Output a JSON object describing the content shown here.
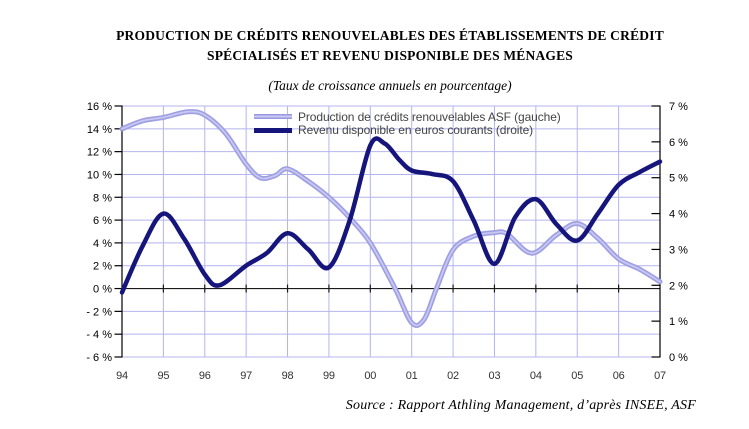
{
  "chart_data": {
    "type": "line",
    "title_line1": "PRODUCTION DE CRÉDITS RENOUVELABLES DES ÉTABLISSEMENTS DE CRÉDIT",
    "title_line2": "SPÉCIALISÉS ET REVENU DISPONIBLE DES MÉNAGES",
    "subtitle": "(Taux de croissance annuels en pourcentage)",
    "source": "Source : Rapport Athling Management, d’après INSEE, ASF",
    "x_tick_labels": [
      "94",
      "95",
      "96",
      "97",
      "98",
      "99",
      "00",
      "01",
      "02",
      "03",
      "04",
      "05",
      "06",
      "07"
    ],
    "left_axis": {
      "min": -6,
      "max": 16,
      "step": 2,
      "labels": [
        "16 %",
        "14 %",
        "12 %",
        "10 %",
        "8 %",
        "6 %",
        "4 %",
        "2 %",
        "0 %",
        "- 2 %",
        "- 4 %",
        "- 6 %"
      ],
      "values": [
        16,
        14,
        12,
        10,
        8,
        6,
        4,
        2,
        0,
        -2,
        -4,
        -6
      ]
    },
    "right_axis": {
      "min": 0,
      "max": 7,
      "step": 1,
      "labels": [
        "7 %",
        "6 %",
        "5 %",
        "4 %",
        "3 %",
        "2 %",
        "1 %",
        "0 %"
      ],
      "values": [
        7,
        6,
        5,
        4,
        3,
        2,
        1,
        0
      ]
    },
    "grid": {
      "color": "#b4b4ee",
      "zero_line_color": "#1a1a1a",
      "axis_color": "#000000"
    },
    "legend_position": "top-center-inside",
    "series": [
      {
        "name": "Production de crédits renouvelables ASF (gauche)",
        "axis": "left",
        "color": "#9e9ee2",
        "highlight": "#c7c7f2",
        "points": [
          [
            1994,
            14.0
          ],
          [
            1994.5,
            14.7
          ],
          [
            1995,
            15.0
          ],
          [
            1995.6,
            15.5
          ],
          [
            1996,
            15.2
          ],
          [
            1996.5,
            13.6
          ],
          [
            1997,
            10.9
          ],
          [
            1997.35,
            9.7
          ],
          [
            1997.7,
            9.9
          ],
          [
            1998,
            10.5
          ],
          [
            1998.5,
            9.4
          ],
          [
            1999,
            8.0
          ],
          [
            1999.5,
            6.2
          ],
          [
            2000,
            4.0
          ],
          [
            2000.6,
            0.0
          ],
          [
            2001,
            -3.0
          ],
          [
            2001.3,
            -2.7
          ],
          [
            2001.6,
            0.0
          ],
          [
            2002,
            3.4
          ],
          [
            2002.5,
            4.6
          ],
          [
            2003,
            4.9
          ],
          [
            2003.3,
            4.8
          ],
          [
            2003.9,
            3.1
          ],
          [
            2004.5,
            4.7
          ],
          [
            2005,
            5.7
          ],
          [
            2005.5,
            4.4
          ],
          [
            2006,
            2.6
          ],
          [
            2006.5,
            1.7
          ],
          [
            2007,
            0.6
          ]
        ]
      },
      {
        "name": "Revenu disponible en euros courants (droite)",
        "axis": "right",
        "color": "#15157c",
        "points": [
          [
            1994,
            1.8
          ],
          [
            1994.5,
            3.1
          ],
          [
            1995,
            4.0
          ],
          [
            1995.5,
            3.3
          ],
          [
            1996,
            2.3
          ],
          [
            1996.35,
            2.0
          ],
          [
            1997,
            2.55
          ],
          [
            1997.5,
            2.9
          ],
          [
            1998,
            3.45
          ],
          [
            1998.5,
            3.0
          ],
          [
            1999,
            2.5
          ],
          [
            1999.5,
            3.8
          ],
          [
            2000,
            5.9
          ],
          [
            2000.35,
            5.95
          ],
          [
            2000.7,
            5.5
          ],
          [
            2001,
            5.2
          ],
          [
            2001.5,
            5.1
          ],
          [
            2002,
            4.9
          ],
          [
            2002.5,
            3.8
          ],
          [
            2003,
            2.6
          ],
          [
            2003.5,
            3.9
          ],
          [
            2004,
            4.4
          ],
          [
            2004.5,
            3.7
          ],
          [
            2005,
            3.25
          ],
          [
            2005.5,
            4.0
          ],
          [
            2006,
            4.8
          ],
          [
            2006.5,
            5.15
          ],
          [
            2007,
            5.45
          ]
        ]
      }
    ]
  }
}
